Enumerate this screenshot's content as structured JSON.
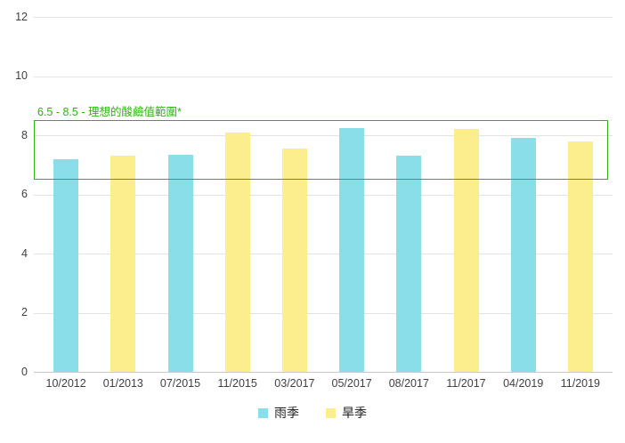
{
  "chart_data": {
    "type": "bar",
    "title": "",
    "xlabel": "",
    "ylabel": "",
    "categories": [
      "10/2012",
      "01/2013",
      "07/2015",
      "11/2015",
      "03/2017",
      "05/2017",
      "08/2017",
      "11/2017",
      "04/2019",
      "11/2019"
    ],
    "series": [
      {
        "name": "雨季",
        "color": "#8ADEE9",
        "values": [
          7.2,
          null,
          7.35,
          null,
          null,
          8.25,
          7.3,
          null,
          7.9,
          null
        ]
      },
      {
        "name": "旱季",
        "color": "#FDEE8D",
        "values": [
          null,
          7.3,
          null,
          8.1,
          7.55,
          null,
          null,
          8.2,
          null,
          7.8
        ]
      }
    ],
    "ylim": [
      0,
      12
    ],
    "y_ticks": [
      0,
      2,
      4,
      6,
      8,
      10,
      12
    ],
    "grid": true,
    "legend_position": "bottom",
    "annotation": {
      "label": "6.5 - 8.5 - 理想的酸鹼值範圍*",
      "range": [
        6.5,
        8.5
      ],
      "color": "#2DB40E"
    },
    "colors": {
      "gridline": "#E3E3E3",
      "baseline": "#C9C9C9",
      "axis_text": "#404040",
      "legend_text": "#1F1F1F"
    }
  }
}
